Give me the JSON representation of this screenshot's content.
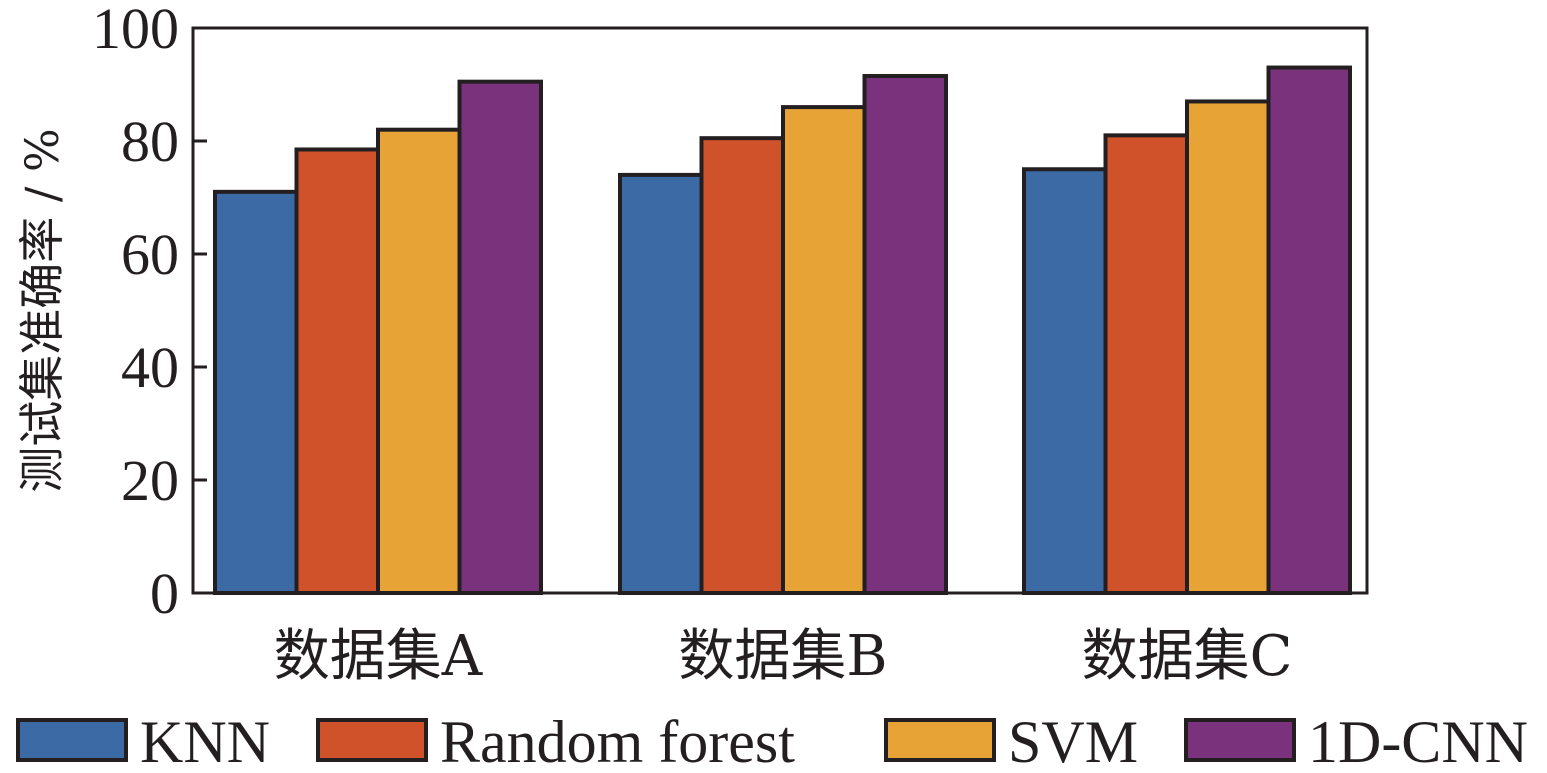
{
  "chart_data": {
    "type": "bar",
    "title": "",
    "xlabel": "",
    "ylabel": "测试集准确率 / %",
    "ylim": [
      0,
      100
    ],
    "yticks": [
      0,
      20,
      40,
      60,
      80,
      100
    ],
    "grid": false,
    "legend_position": "bottom",
    "categories": [
      "数据集A",
      "数据集B",
      "数据集C"
    ],
    "series": [
      {
        "name": "KNN",
        "color": "#3b6aa5",
        "values": [
          71,
          74,
          75
        ]
      },
      {
        "name": "Random forest",
        "color": "#d0522b",
        "values": [
          78.5,
          80.5,
          81
        ]
      },
      {
        "name": "SVM",
        "color": "#e8a337",
        "values": [
          82,
          86,
          87
        ]
      },
      {
        "name": "1D-CNN",
        "color": "#7b327c",
        "values": [
          90.5,
          91.5,
          93
        ]
      }
    ]
  }
}
